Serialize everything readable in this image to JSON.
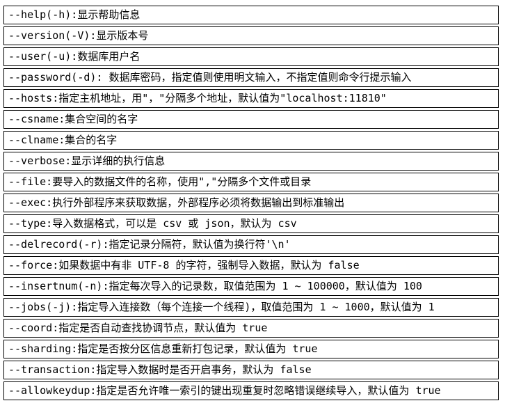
{
  "table": {
    "description": "command-line options reference table",
    "rows": [
      {
        "text": "--help(-h):显示帮助信息"
      },
      {
        "text": "--version(-V):显示版本号"
      },
      {
        "text": "--user(-u):数据库用户名"
      },
      {
        "text": "--password(-d): 数据库密码，指定值则使用明文输入，不指定值则命令行提示输入"
      },
      {
        "text": "--hosts:指定主机地址，用\"，\"分隔多个地址，默认值为\"localhost:11810\""
      },
      {
        "text": "--csname:集合空间的名字"
      },
      {
        "text": "--clname:集合的名字"
      },
      {
        "text": "--verbose:显示详细的执行信息"
      },
      {
        "text": "--file:要导入的数据文件的名称，使用\",\"分隔多个文件或目录"
      },
      {
        "text": "--exec:执行外部程序来获取数据，外部程序必须将数据输出到标准输出"
      },
      {
        "text": "--type:导入数据格式，可以是 csv 或 json，默认为 csv"
      },
      {
        "text": "--delrecord(-r):指定记录分隔符，默认值为换行符'\\n'"
      },
      {
        "text": "--force:如果数据中有非 UTF-8 的字符，强制导入数据，默认为 false"
      },
      {
        "text": "--insertnum(-n):指定每次导入的记录数，取值范围为 1 ~ 100000，默认值为 100"
      },
      {
        "text": "--jobs(-j):指定导入连接数（每个连接一个线程)，取值范围为 1 ~ 1000，默认值为 1"
      },
      {
        "text": "--coord:指定是否自动查找协调节点，默认值为 true"
      },
      {
        "text": "--sharding:指定是否按分区信息重新打包记录，默认值为 true"
      },
      {
        "text": "--transaction:指定导入数据时是否开启事务，默认为 false"
      },
      {
        "text": "--allowkeydup:指定是否允许唯一索引的键出现重复时忽略错误继续导入，默认值为 true"
      }
    ]
  }
}
